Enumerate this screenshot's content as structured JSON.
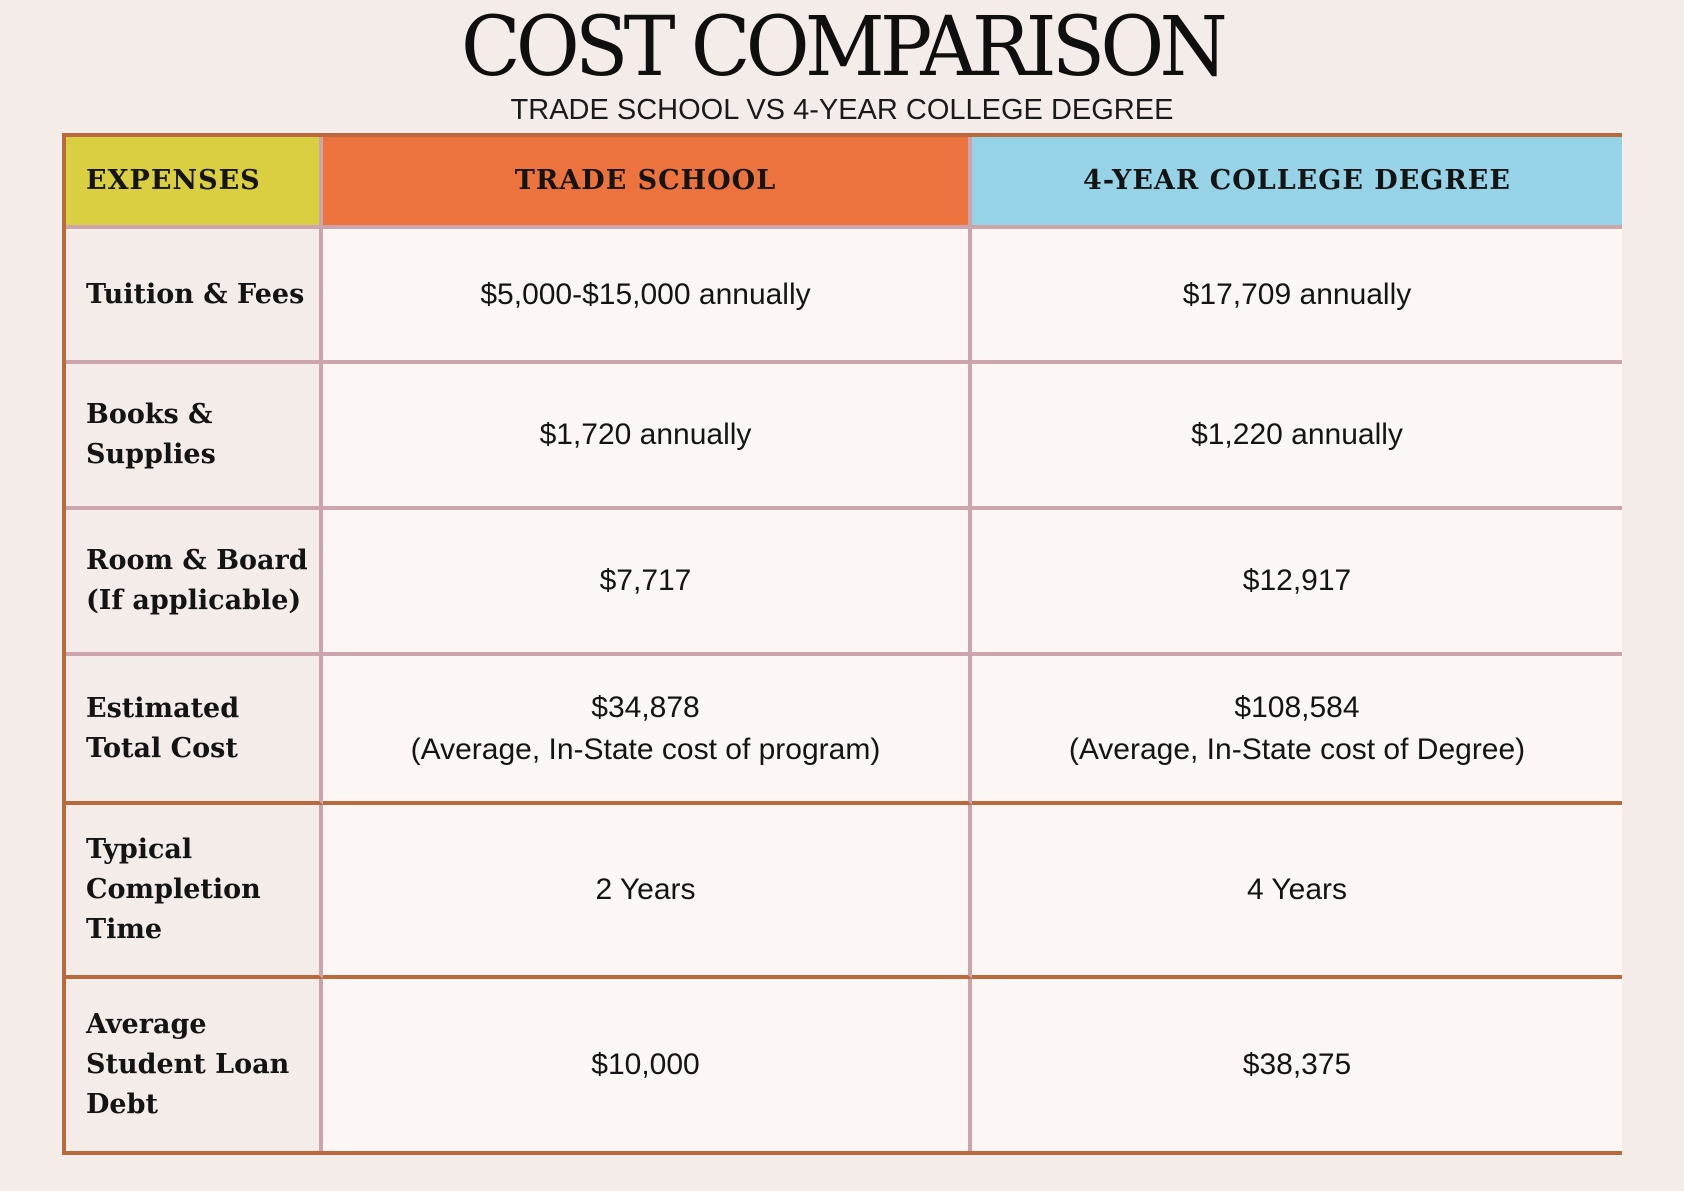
{
  "title": "COST COMPARISON",
  "subtitle": "TRADE SCHOOL VS 4-YEAR COLLEGE DEGREE",
  "colors": {
    "background": "#f3ece8",
    "header_expenses": "#d9cf41",
    "header_trade_school": "#ec733d",
    "header_college": "#96d3e6",
    "outer_border": "#b86a3c",
    "inner_border": "#cba5ab"
  },
  "table": {
    "headers": [
      "EXPENSES",
      "TRADE SCHOOL",
      "4-YEAR COLLEGE DEGREE"
    ],
    "rows": [
      {
        "label": "Tuition & Fees",
        "trade_school": [
          "$5,000-$15,000 annually"
        ],
        "college": [
          "$17,709 annually"
        ]
      },
      {
        "label": "Books & Supplies",
        "trade_school": [
          "$1,720 annually"
        ],
        "college": [
          "$1,220 annually"
        ]
      },
      {
        "label": "Room & Board (If applicable)",
        "trade_school": [
          "$7,717"
        ],
        "college": [
          "$12,917"
        ]
      },
      {
        "label": "Estimated Total Cost",
        "trade_school": [
          "$34,878",
          "(Average, In-State cost of program)"
        ],
        "college": [
          "$108,584",
          "(Average, In-State cost of Degree)"
        ]
      },
      {
        "label": "Typical Completion Time",
        "trade_school": [
          "2 Years"
        ],
        "college": [
          "4 Years"
        ]
      },
      {
        "label": "Average Student Loan Debt",
        "trade_school": [
          "$10,000"
        ],
        "college": [
          "$38,375"
        ]
      }
    ]
  }
}
